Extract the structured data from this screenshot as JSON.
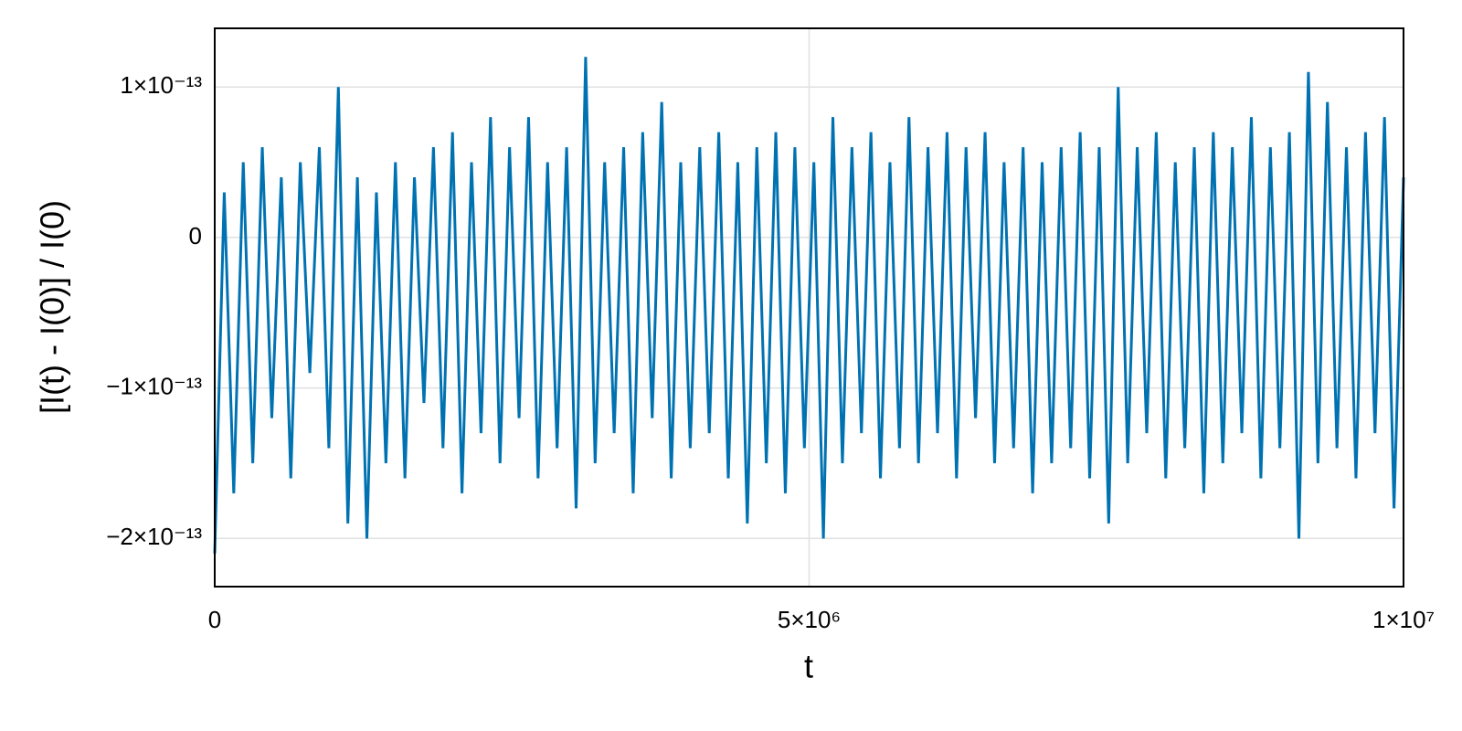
{
  "chart_data": {
    "type": "line",
    "xlabel": "t",
    "ylabel": "[I(t) - I(0)] / I(0)",
    "x": [
      0,
      80000,
      160000,
      240000,
      320000,
      400000,
      480000,
      560000,
      640000,
      720000,
      800000,
      880000,
      960000,
      1040000,
      1120000,
      1200000,
      1280000,
      1360000,
      1440000,
      1520000,
      1600000,
      1680000,
      1760000,
      1840000,
      1920000,
      2000000,
      2080000,
      2160000,
      2240000,
      2320000,
      2400000,
      2480000,
      2560000,
      2640000,
      2720000,
      2800000,
      2880000,
      2960000,
      3040000,
      3120000,
      3200000,
      3280000,
      3360000,
      3440000,
      3520000,
      3600000,
      3680000,
      3760000,
      3840000,
      3920000,
      4000000,
      4080000,
      4160000,
      4240000,
      4320000,
      4400000,
      4480000,
      4560000,
      4640000,
      4720000,
      4800000,
      4880000,
      4960000,
      5040000,
      5120000,
      5200000,
      5280000,
      5360000,
      5440000,
      5520000,
      5600000,
      5680000,
      5760000,
      5840000,
      5920000,
      6000000,
      6080000,
      6160000,
      6240000,
      6320000,
      6400000,
      6480000,
      6560000,
      6640000,
      6720000,
      6800000,
      6880000,
      6960000,
      7040000,
      7120000,
      7200000,
      7280000,
      7360000,
      7440000,
      7520000,
      7600000,
      7680000,
      7760000,
      7840000,
      7920000,
      8000000,
      8080000,
      8160000,
      8240000,
      8320000,
      8400000,
      8480000,
      8560000,
      8640000,
      8720000,
      8800000,
      8880000,
      8960000,
      9040000,
      9120000,
      9200000,
      9280000,
      9360000,
      9440000,
      9520000,
      9600000,
      9680000,
      9760000,
      9840000,
      9920000,
      10000000
    ],
    "series": [
      {
        "name": "I",
        "color": "#0072b2",
        "values": [
          -2.1e-13,
          3e-14,
          -1.7e-13,
          5e-14,
          -1.5e-13,
          6e-14,
          -1.2e-13,
          4e-14,
          -1.6e-13,
          5e-14,
          -9e-14,
          6e-14,
          -1.4e-13,
          1e-13,
          -1.9e-13,
          4e-14,
          -2e-13,
          3e-14,
          -1.5e-13,
          5e-14,
          -1.6e-13,
          4e-14,
          -1.1e-13,
          6e-14,
          -1.4e-13,
          7e-14,
          -1.7e-13,
          5e-14,
          -1.3e-13,
          8e-14,
          -1.5e-13,
          6e-14,
          -1.2e-13,
          8e-14,
          -1.6e-13,
          5e-14,
          -1.4e-13,
          6e-14,
          -1.8e-13,
          1.2e-13,
          -1.5e-13,
          5e-14,
          -1.3e-13,
          6e-14,
          -1.7e-13,
          7e-14,
          -1.2e-13,
          9e-14,
          -1.6e-13,
          5e-14,
          -1.4e-13,
          6e-14,
          -1.3e-13,
          7e-14,
          -1.6e-13,
          5e-14,
          -1.9e-13,
          6e-14,
          -1.5e-13,
          7e-14,
          -1.7e-13,
          6e-14,
          -1.4e-13,
          5e-14,
          -2e-13,
          8e-14,
          -1.5e-13,
          6e-14,
          -1.3e-13,
          7e-14,
          -1.6e-13,
          5e-14,
          -1.4e-13,
          8e-14,
          -1.5e-13,
          6e-14,
          -1.3e-13,
          7e-14,
          -1.6e-13,
          6e-14,
          -1.2e-13,
          7e-14,
          -1.5e-13,
          5e-14,
          -1.4e-13,
          6e-14,
          -1.7e-13,
          5e-14,
          -1.5e-13,
          6e-14,
          -1.4e-13,
          7e-14,
          -1.6e-13,
          6e-14,
          -1.9e-13,
          1e-13,
          -1.5e-13,
          6e-14,
          -1.3e-13,
          7e-14,
          -1.6e-13,
          5e-14,
          -1.4e-13,
          6e-14,
          -1.7e-13,
          7e-14,
          -1.5e-13,
          6e-14,
          -1.3e-13,
          8e-14,
          -1.6e-13,
          6e-14,
          -1.4e-13,
          7e-14,
          -2e-13,
          1.1e-13,
          -1.5e-13,
          9e-14,
          -1.4e-13,
          6e-14,
          -1.6e-13,
          7e-14,
          -1.3e-13,
          8e-14,
          -1.8e-13,
          4e-14
        ]
      }
    ],
    "xlim": [
      0,
      10000000
    ],
    "xticks": [
      0,
      {
        "value": 5000000,
        "label": "5×10⁶"
      },
      {
        "value": 10000000,
        "label": "1×10⁷"
      }
    ],
    "ylim": [
      -2.32e-13,
      1.39e-13
    ],
    "yticks": [
      {
        "value": -2e-13,
        "label": "−2×10⁻¹³"
      },
      {
        "value": -1e-13,
        "label": "−1×10⁻¹³"
      },
      0,
      {
        "value": 1e-13,
        "label": "1×10⁻¹³"
      }
    ],
    "grid": true
  }
}
